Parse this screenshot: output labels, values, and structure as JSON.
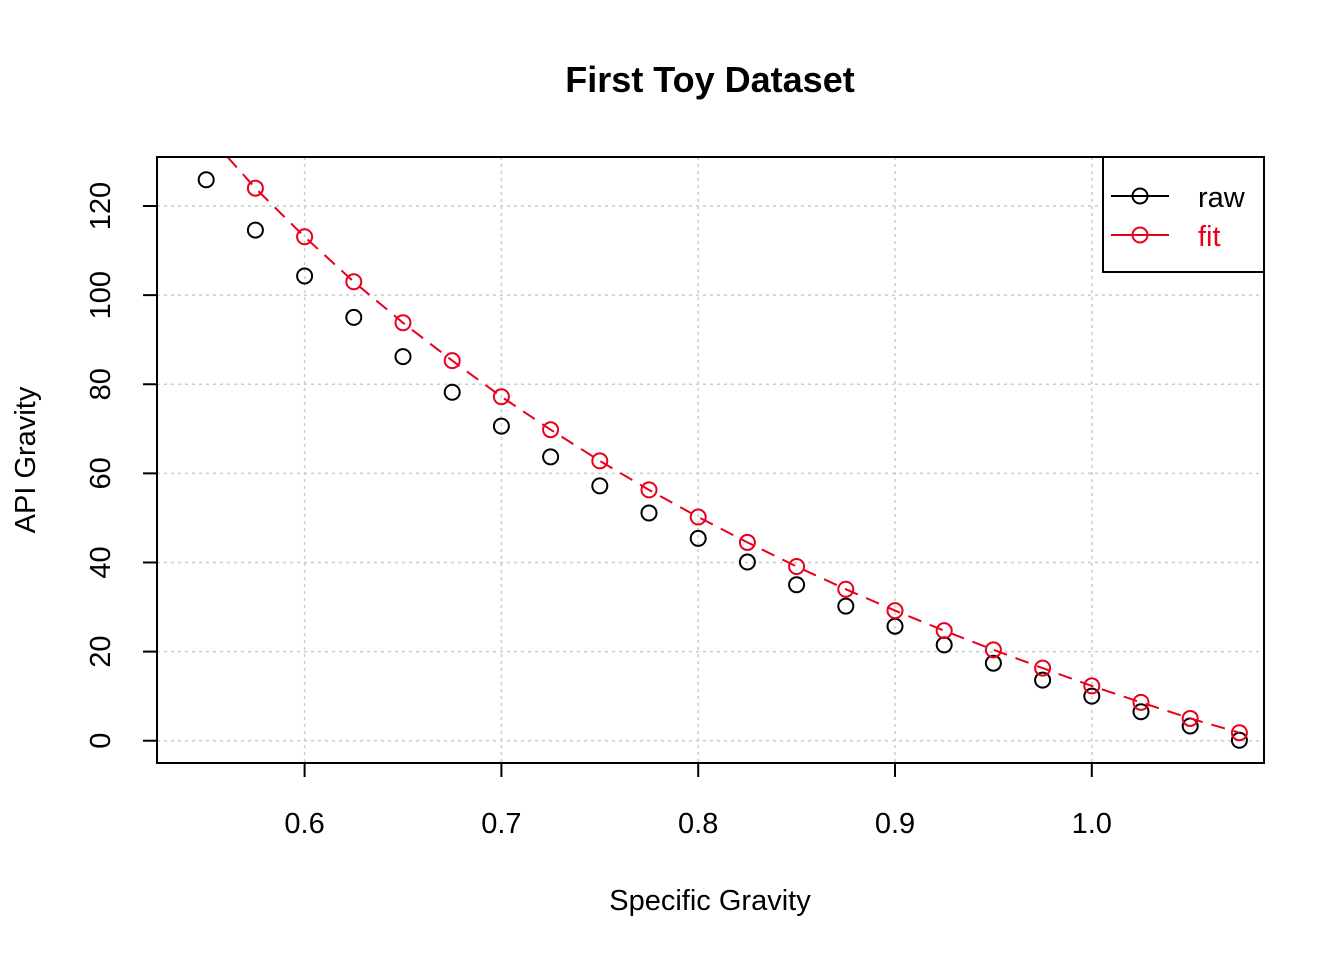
{
  "chart_data": {
    "type": "scatter",
    "title": "First Toy Dataset",
    "xlabel": "Specific Gravity",
    "ylabel": "API Gravity",
    "xlim": [
      0.525,
      1.0875
    ],
    "ylim": [
      -5,
      131
    ],
    "x_ticks": [
      0.6,
      0.7,
      0.8,
      0.9,
      1.0
    ],
    "x_tick_labels": [
      "0.6",
      "0.7",
      "0.8",
      "0.9",
      "1.0"
    ],
    "y_ticks": [
      0,
      20,
      40,
      60,
      80,
      100,
      120
    ],
    "y_tick_labels": [
      "0",
      "20",
      "40",
      "60",
      "80",
      "100",
      "120"
    ],
    "grid": true,
    "legend_position": "top-right",
    "series": [
      {
        "name": "raw",
        "color": "#000000",
        "marker": "open-circle",
        "line": "none",
        "x": [
          0.55,
          0.575,
          0.6,
          0.625,
          0.65,
          0.675,
          0.7,
          0.725,
          0.75,
          0.775,
          0.8,
          0.825,
          0.85,
          0.875,
          0.9,
          0.925,
          0.95,
          0.975,
          1.0,
          1.025,
          1.05,
          1.075
        ],
        "y": [
          125.9,
          114.6,
          104.3,
          95.0,
          86.2,
          78.2,
          70.6,
          63.7,
          57.2,
          51.1,
          45.4,
          40.1,
          35.0,
          30.2,
          25.7,
          21.5,
          17.4,
          13.6,
          10.0,
          6.5,
          3.3,
          0.1
        ]
      },
      {
        "name": "fit",
        "color": "#e8001c",
        "marker": "open-circle",
        "line": "dashed",
        "x": [
          0.575,
          0.6,
          0.625,
          0.65,
          0.675,
          0.7,
          0.725,
          0.75,
          0.775,
          0.8,
          0.825,
          0.85,
          0.875,
          0.9,
          0.925,
          0.95,
          0.975,
          1.0,
          1.025,
          1.05,
          1.075
        ],
        "y": [
          124.0,
          113.1,
          103.0,
          93.8,
          85.3,
          77.2,
          69.8,
          62.8,
          56.3,
          50.2,
          44.5,
          39.1,
          34.0,
          29.2,
          24.7,
          20.4,
          16.3,
          12.3,
          8.6,
          5.0,
          1.8
        ],
        "line_x": [
          0.5608,
          0.575,
          0.6,
          0.625,
          0.65,
          0.675,
          0.7,
          0.725,
          0.75,
          0.775,
          0.8,
          0.825,
          0.85,
          0.875,
          0.9,
          0.925,
          0.95,
          0.975,
          1.0,
          1.025,
          1.05,
          1.075
        ],
        "line_y": [
          131.0,
          124.0,
          113.1,
          103.0,
          93.8,
          85.3,
          77.2,
          69.8,
          62.8,
          56.3,
          50.2,
          44.5,
          39.1,
          34.0,
          29.2,
          24.7,
          20.4,
          16.3,
          12.3,
          8.6,
          5.0,
          1.8
        ]
      }
    ]
  }
}
